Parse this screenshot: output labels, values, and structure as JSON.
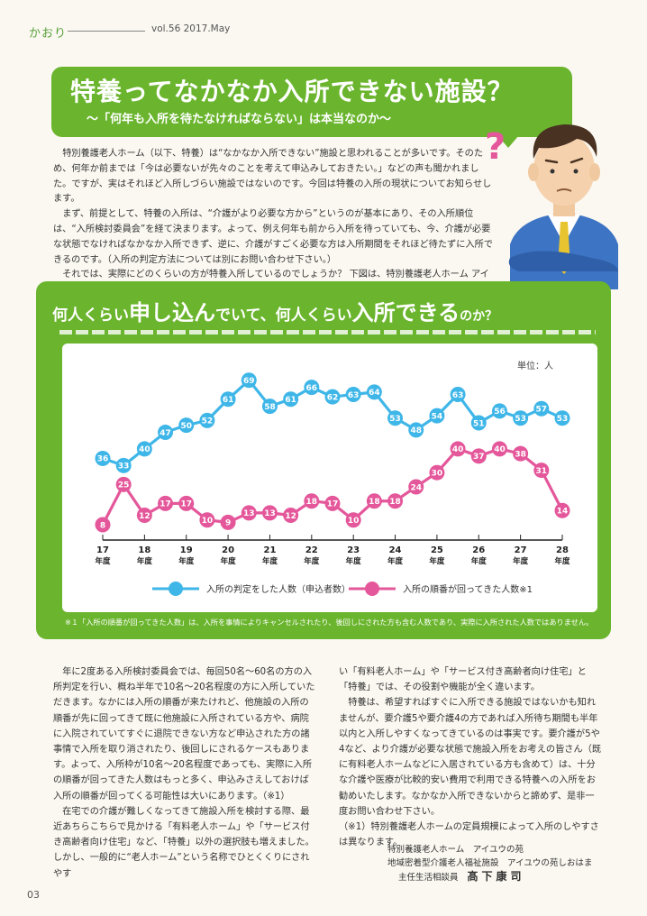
{
  "header": {
    "brand": "かおり",
    "issue": "vol.56 2017.May"
  },
  "title": {
    "main": "特養ってなかなか入所できない施設？",
    "subtitle": "～「何年も入所を待たなければならない」は本当なのか～"
  },
  "intro_paragraphs": [
    "特別養護老人ホーム（以下、特養）は“なかなか入所できない”施設と思われることが多いです。そのため、何年か前までは「今は必要ないが先々のことを考えて申込みしておきたい。」などの声も聞かれました。ですが、実はそれほど入所しづらい施設ではないのです。今回は特養の入所の現状についてお知らせします。",
    "まず、前提として、特養の入所は、“介護がより必要な方から”というのが基本にあり、その入所順位は、“入所検討委員会”を経て決まります。よって、例え何年も前から入所を待っていても、今、介護が必要な状態でなければなかなか入所できず、逆に、介護がすごく必要な方は入所期間をそれほど待たずに入所できるのです。（入所の判定方法については別にお問い合わせ下さい。）",
    "それでは、実際にどのくらいの方が特養入所しているのでしょうか？ 下図は、特別養護老人ホーム アイユウの苑（定員100名）の入所の判定をした人数（申込者数）と入所の順番が回ってきた人数の状況です。"
  ],
  "chart_title": {
    "p1": "何人くらい",
    "p2": "申し込ん",
    "p3": "でいて、何人くらい",
    "p4": "入所できる",
    "p5": "のか？"
  },
  "chart_data": {
    "type": "line",
    "unit": "単位：人",
    "categories": [
      "17\n年度",
      "",
      "18\n年度",
      "",
      "19\n年度",
      "",
      "20\n年度",
      "",
      "21\n年度",
      "",
      "22\n年度",
      "",
      "23\n年度",
      "",
      "24\n年度",
      "",
      "25\n年度",
      "",
      "26\n年度",
      "",
      "27\n年度",
      "",
      "28\n年度"
    ],
    "tick_labels": [
      {
        "year": "17",
        "suffix": "年度"
      },
      {
        "year": "18",
        "suffix": "年度"
      },
      {
        "year": "19",
        "suffix": "年度"
      },
      {
        "year": "20",
        "suffix": "年度"
      },
      {
        "year": "21",
        "suffix": "年度"
      },
      {
        "year": "22",
        "suffix": "年度"
      },
      {
        "year": "23",
        "suffix": "年度"
      },
      {
        "year": "24",
        "suffix": "年度"
      },
      {
        "year": "25",
        "suffix": "年度"
      },
      {
        "year": "26",
        "suffix": "年度"
      },
      {
        "year": "27",
        "suffix": "年度"
      },
      {
        "year": "28",
        "suffix": "年度"
      }
    ],
    "series": [
      {
        "name": "入所の判定をした人数（申込者数）",
        "color": "#3fb6e8",
        "values": [
          36,
          33,
          40,
          47,
          50,
          52,
          61,
          69,
          58,
          61,
          66,
          62,
          63,
          64,
          53,
          48,
          54,
          63,
          51,
          56,
          53,
          57,
          53
        ]
      },
      {
        "name": "入所の順番が回ってきた人数※1",
        "color": "#e4579a",
        "values": [
          8,
          25,
          12,
          17,
          17,
          10,
          9,
          13,
          13,
          12,
          18,
          17,
          10,
          18,
          18,
          24,
          30,
          40,
          37,
          40,
          38,
          31,
          14
        ]
      }
    ],
    "x_range": [
      0,
      22
    ],
    "ylim": [
      0,
      75
    ],
    "legend_position": "bottom"
  },
  "footnote": "※１「入所の順番が回ってきた人数」は、入所を事情によりキャンセルされたり、後回しにされた方も含む人数であり、実際に入所された人数ではありません。",
  "body_left": [
    "年に2度ある入所検討委員会では、毎回50名～60名の方の入所判定を行い、概ね半年で10名～20名程度の方に入所していただきます。なかには入所の順番が来たけれど、他施設の入所の順番が先に回ってきて既に他施設に入所されている方や、病院に入院されていてすぐに退院できない方など申込された方の諸事情で入所を取り消されたり、後回しにされるケースもあります。よって、入所枠が10名～20名程度であっても、実際に入所の順番が回ってきた人数はもっと多く、申込みさえしておけば入所の順番が回ってくる可能性は大いにあります。（※1）",
    "在宅での介護が難しくなってきて施設入所を検討する際、最近あちらこちらで見かける「有料老人ホーム」や「サービス付き高齢者向け住宅」など、「特養」以外の選択肢も増えました。しかし、一般的に“老人ホーム”という名称でひとくくりにされやす"
  ],
  "body_right": [
    "い「有料老人ホーム」や「サービス付き高齢者向け住宅」と「特養」では、その役割や機能が全く違います。",
    "特養は、希望すればすぐに入所できる施設ではないかも知れませんが、要介護5や要介護4の方であれば入所待ち期間も半年以内と入所しやすくなってきているのは事実です。要介護が5や4など、より介護が必要な状態で施設入所をお考えの皆さん（既に有料老人ホームなどに入居されている方も含めて）は、十分な介護や医療が比較的安い費用で利用できる特養への入所をお勧めいたします。なかなか入所できないからと諦めず、是非一度お問い合わせ下さい。",
    "（※1）特別養護老人ホームの定員規模によって入所のしやすさは異なります。"
  ],
  "signature": {
    "line1": "特別養護老人ホーム　アイユウの苑",
    "line2": "地域密着型介護老人福祉施設　アイユウの苑しおはま",
    "line3_role": "主任生活相談員",
    "line3_name": "髙下康司"
  },
  "page_number": "03",
  "colors": {
    "green": "#6ab52d",
    "blue": "#3fb6e8",
    "pink": "#e4579a"
  }
}
